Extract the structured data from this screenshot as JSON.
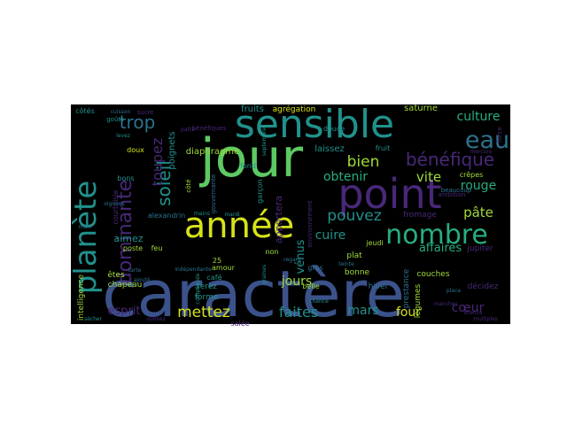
{
  "figure": {
    "background": "#ffffff",
    "panel_background": "#000000"
  },
  "palette": {
    "yellow": "#d5e21a",
    "green": "#5ec962",
    "teal": "#21918c",
    "blue": "#3b528b",
    "purple": "#482878",
    "lightgreen": "#a0da39",
    "cyan": "#27ad81",
    "steel": "#2c728e"
  },
  "words": [
    {
      "text": "caractère",
      "color": "blue"
    },
    {
      "text": "jour",
      "color": "green"
    },
    {
      "text": "sensible",
      "color": "teal"
    },
    {
      "text": "point",
      "color": "purple"
    },
    {
      "text": "année",
      "color": "yellow"
    },
    {
      "text": "planète",
      "color": "teal"
    },
    {
      "text": "nombre",
      "color": "cyan"
    },
    {
      "text": "eau",
      "color": "steel"
    },
    {
      "text": "bénéfique",
      "color": "purple"
    },
    {
      "text": "dominante",
      "color": "purple"
    },
    {
      "text": "trop",
      "color": "steel"
    },
    {
      "text": "soleil",
      "color": "teal"
    },
    {
      "text": "toupez",
      "color": "purple"
    },
    {
      "text": "culture",
      "color": "cyan"
    },
    {
      "text": "bien",
      "color": "lightgreen"
    },
    {
      "text": "vite",
      "color": "lightgreen"
    },
    {
      "text": "rouge",
      "color": "cyan"
    },
    {
      "text": "obtenir",
      "color": "cyan"
    },
    {
      "text": "pouvez",
      "color": "teal"
    },
    {
      "text": "pâte",
      "color": "lightgreen"
    },
    {
      "text": "cuire",
      "color": "teal"
    },
    {
      "text": "vénus",
      "color": "teal"
    },
    {
      "text": "affaires",
      "color": "cyan"
    },
    {
      "text": "jours",
      "color": "lightgreen"
    },
    {
      "text": "mettez",
      "color": "yellow"
    },
    {
      "text": "faites",
      "color": "teal"
    },
    {
      "text": "esprit",
      "color": "purple"
    },
    {
      "text": "mars",
      "color": "teal"
    },
    {
      "text": "four",
      "color": "yellow"
    },
    {
      "text": "cœur",
      "color": "purple"
    },
    {
      "text": "aimez",
      "color": "teal"
    },
    {
      "text": "apportera",
      "color": "purple"
    },
    {
      "text": "diaphragme",
      "color": "lightgreen"
    },
    {
      "text": "fruits",
      "color": "teal"
    },
    {
      "text": "agrégation",
      "color": "yellow"
    },
    {
      "text": "poignets",
      "color": "teal"
    },
    {
      "text": "laissez",
      "color": "teal"
    },
    {
      "text": "saturne",
      "color": "lightgreen"
    },
    {
      "text": "jupiter",
      "color": "purple"
    },
    {
      "text": "fromage",
      "color": "purple"
    },
    {
      "text": "légumes",
      "color": "lightgreen"
    },
    {
      "text": "couches",
      "color": "lightgreen"
    },
    {
      "text": "décidez",
      "color": "purple"
    },
    {
      "text": "prestance",
      "color": "steel"
    },
    {
      "text": "hiver",
      "color": "steel"
    },
    {
      "text": "bonne",
      "color": "lightgreen"
    },
    {
      "text": "plat",
      "color": "lightgreen"
    },
    {
      "text": "gras",
      "color": "steel"
    },
    {
      "text": "jeudi",
      "color": "lightgreen"
    },
    {
      "text": "non",
      "color": "lightgreen"
    },
    {
      "text": "belle",
      "color": "lightgreen"
    },
    {
      "text": "serez",
      "color": "teal"
    },
    {
      "text": "forme",
      "color": "teal"
    },
    {
      "text": "salée",
      "color": "purple"
    },
    {
      "text": "chapeau",
      "color": "lightgreen"
    },
    {
      "text": "êtes",
      "color": "lightgreen"
    },
    {
      "text": "amour",
      "color": "lightgreen"
    },
    {
      "text": "café",
      "color": "teal"
    },
    {
      "text": "intelligence",
      "color": "lightgreen"
    },
    {
      "text": "poste",
      "color": "lightgreen"
    },
    {
      "text": "feu",
      "color": "lightgreen"
    },
    {
      "text": "alexandrin",
      "color": "steel"
    },
    {
      "text": "courtoisie",
      "color": "purple"
    },
    {
      "text": "bons",
      "color": "teal"
    },
    {
      "text": "doux",
      "color": "yellow"
    },
    {
      "text": "côtés",
      "color": "teal"
    },
    {
      "text": "goûts",
      "color": "teal"
    },
    {
      "text": "bénéfiques",
      "color": "purple"
    },
    {
      "text": "côté",
      "color": "lightgreen"
    },
    {
      "text": "gouvernante",
      "color": "steel"
    },
    {
      "text": "fond",
      "color": "teal"
    },
    {
      "text": "garçon",
      "color": "teal"
    },
    {
      "text": "environnement",
      "color": "purple"
    },
    {
      "text": "beaucoup",
      "color": "steel"
    },
    {
      "text": "crêpes",
      "color": "lightgreen"
    },
    {
      "text": "douce",
      "color": "teal"
    },
    {
      "text": "fruit",
      "color": "teal"
    },
    {
      "text": "ambition",
      "color": "purple"
    },
    {
      "text": "force",
      "color": "purple"
    },
    {
      "text": "25",
      "color": "lightgreen"
    },
    {
      "text": "mardi",
      "color": "teal"
    },
    {
      "text": "oignons",
      "color": "steel"
    },
    {
      "text": "levez",
      "color": "teal"
    },
    {
      "text": "sucre",
      "color": "purple"
    },
    {
      "text": "teinte",
      "color": "steel"
    },
    {
      "text": "tarte",
      "color": "steel"
    },
    {
      "text": "mercure",
      "color": "purple"
    },
    {
      "text": "graines",
      "color": "teal"
    },
    {
      "text": "compliquée",
      "color": "teal"
    },
    {
      "text": "indépendante",
      "color": "steel"
    },
    {
      "text": "licence",
      "color": "purple"
    },
    {
      "text": "multiples",
      "color": "purple"
    },
    {
      "text": "sécher",
      "color": "teal"
    },
    {
      "text": "oubliez",
      "color": "purple"
    },
    {
      "text": "manches",
      "color": "purple"
    },
    {
      "text": "place",
      "color": "steel"
    },
    {
      "text": "cuisson",
      "color": "steel"
    },
    {
      "text": "ajouté",
      "color": "steel"
    },
    {
      "text": "septembre",
      "color": "teal"
    },
    {
      "text": "regard",
      "color": "steel"
    },
    {
      "text": "chance",
      "color": "teal"
    },
    {
      "text": "main",
      "color": "steel"
    },
    {
      "text": "mains",
      "color": "teal"
    },
    {
      "text": "patte",
      "color": "purple"
    }
  ]
}
